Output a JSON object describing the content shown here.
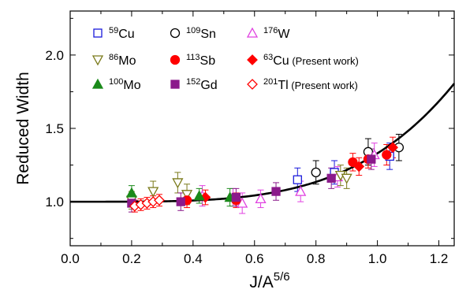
{
  "chart_data": {
    "type": "scatter",
    "title": "",
    "xlabel": {
      "base": "J/A",
      "sup": "5/6"
    },
    "ylabel": "Reduced Width",
    "xlim": [
      0.0,
      1.25
    ],
    "ylim": [
      0.7,
      2.3
    ],
    "x_ticks": [
      "0.0",
      "0.2",
      "0.4",
      "0.6",
      "0.8",
      "1.0",
      "1.2"
    ],
    "y_ticks": [
      "1.0",
      "1.5",
      "2.0"
    ],
    "grid": false,
    "legend_position": "top-left",
    "fit_curve": {
      "type": "line",
      "color": "#000000",
      "formula": "y = 1 + a*x^4",
      "a": 0.33
    },
    "series": [
      {
        "sup": "59",
        "elem": "Cu",
        "suffix": "",
        "marker": "square-open",
        "color": "#1a1adb",
        "points": [
          [
            0.74,
            1.15,
            0.08
          ],
          [
            0.86,
            1.2,
            0.08
          ],
          [
            1.04,
            1.31,
            0.09
          ]
        ]
      },
      {
        "sup": "109",
        "elem": "Sn",
        "suffix": "",
        "marker": "circle-open",
        "color": "#000000",
        "points": [
          [
            0.8,
            1.2,
            0.08
          ],
          [
            0.97,
            1.34,
            0.09
          ],
          [
            1.07,
            1.37,
            0.09
          ]
        ]
      },
      {
        "sup": "176",
        "elem": "W",
        "suffix": "",
        "marker": "triangle-up-open",
        "color": "#e040e0",
        "points": [
          [
            0.43,
            1.04,
            0.07
          ],
          [
            0.53,
            1.03,
            0.06
          ],
          [
            0.56,
            0.99,
            0.07
          ],
          [
            0.62,
            1.02,
            0.06
          ],
          [
            0.75,
            1.07,
            0.07
          ],
          [
            0.87,
            1.17,
            0.07
          ],
          [
            0.99,
            1.32,
            0.08
          ]
        ]
      },
      {
        "sup": "86",
        "elem": "Mo",
        "suffix": "",
        "marker": "triangle-down-open",
        "color": "#7a7a1a",
        "points": [
          [
            0.2,
            1.01,
            0.06
          ],
          [
            0.27,
            1.07,
            0.07
          ],
          [
            0.35,
            1.13,
            0.07
          ],
          [
            0.38,
            1.05,
            0.07
          ],
          [
            0.88,
            1.18,
            0.07
          ],
          [
            0.9,
            1.16,
            0.07
          ]
        ]
      },
      {
        "sup": "113",
        "elem": "Sb",
        "suffix": "",
        "marker": "circle-filled",
        "color": "#ff0000",
        "points": [
          [
            0.38,
            1.01,
            0.05
          ],
          [
            0.54,
            1.01,
            0.05
          ],
          [
            0.92,
            1.27,
            0.06
          ],
          [
            0.97,
            1.29,
            0.06
          ],
          [
            1.03,
            1.32,
            0.07
          ]
        ]
      },
      {
        "sup": "63",
        "elem": "Cu",
        "suffix": " (Present work)",
        "marker": "diamond-filled",
        "color": "#ff0000",
        "points": [
          [
            0.44,
            1.03,
            0.05
          ],
          [
            0.94,
            1.24,
            0.06
          ],
          [
            1.05,
            1.37,
            0.07
          ]
        ]
      },
      {
        "sup": "100",
        "elem": "Mo",
        "suffix": "",
        "marker": "triangle-up-filled",
        "color": "#1a8a1a",
        "points": [
          [
            0.2,
            1.06,
            0.05
          ],
          [
            0.42,
            1.04,
            0.05
          ],
          [
            0.52,
            1.03,
            0.06
          ]
        ]
      },
      {
        "sup": "152",
        "elem": "Gd",
        "suffix": "",
        "marker": "square-filled",
        "color": "#8b1a8b",
        "points": [
          [
            0.2,
            0.99,
            0.06
          ],
          [
            0.36,
            1.0,
            0.06
          ],
          [
            0.54,
            1.03,
            0.06
          ],
          [
            0.67,
            1.07,
            0.06
          ],
          [
            0.85,
            1.16,
            0.07
          ],
          [
            0.98,
            1.29,
            0.07
          ]
        ]
      },
      {
        "sup": "201",
        "elem": "Tl",
        "suffix": " (Present work)",
        "marker": "diamond-open",
        "color": "#ff0000",
        "points": [
          [
            0.21,
            0.97,
            0.04
          ],
          [
            0.23,
            0.98,
            0.04
          ],
          [
            0.25,
            0.99,
            0.04
          ],
          [
            0.27,
            1.0,
            0.04
          ],
          [
            0.29,
            1.01,
            0.04
          ]
        ]
      }
    ]
  }
}
